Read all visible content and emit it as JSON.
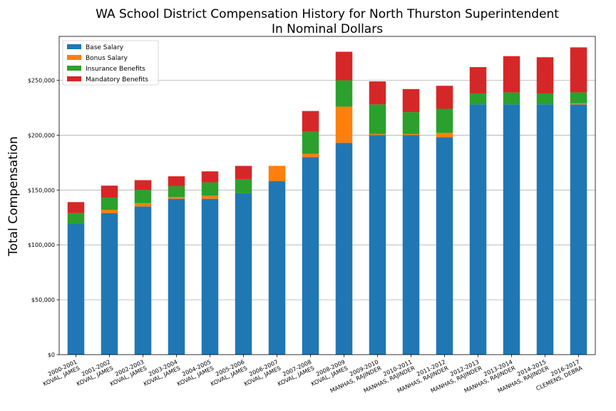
{
  "chart_data": {
    "type": "bar",
    "stacked": true,
    "title": "WA School District Compensation History for North Thurston Superintendent",
    "subtitle": "In Nominal Dollars",
    "xlabel": "",
    "ylabel": "Total Compensation",
    "ylim": [
      0,
      290000
    ],
    "yticks": [
      0,
      50000,
      100000,
      150000,
      200000,
      250000
    ],
    "ytick_labels": [
      "$0",
      "$50,000",
      "$100,000",
      "$150,000",
      "$200,000",
      "$250,000"
    ],
    "grid": "y",
    "legend": "top-left",
    "categories": [
      [
        "2000-2001",
        "KOVAL, JAMES"
      ],
      [
        "2001-2002",
        "KOVAL, JAMES"
      ],
      [
        "2002-2003",
        "KOVAL, JAMES"
      ],
      [
        "2003-2004",
        "KOVAL, JAMES"
      ],
      [
        "2004-2005",
        "KOVAL, JAMES"
      ],
      [
        "2005-2006",
        "KOVAL, JAMES"
      ],
      [
        "2006-2007",
        "KOVAL, JAMES"
      ],
      [
        "2007-2008",
        "KOVAL, JAMES"
      ],
      [
        "2008-2009",
        "KOVAL, JAMES"
      ],
      [
        "2009-2010",
        "MANHAS, RAJINDER"
      ],
      [
        "2010-2011",
        "MANHAS, RAJINDER"
      ],
      [
        "2011-2012",
        "MANHAS, RAJINDER"
      ],
      [
        "2012-2013",
        "MANHAS, RAJINDER"
      ],
      [
        "2013-2014",
        "MANHAS, RAJINDER"
      ],
      [
        "2014-2015",
        "MANHAS, RAJINDER"
      ],
      [
        "2016-2017",
        "CLEMENS, DEBRA"
      ]
    ],
    "series": [
      {
        "name": "Base Salary",
        "color": "#1f77b4",
        "values": [
          119000,
          129000,
          135000,
          142000,
          142000,
          147000,
          158000,
          180000,
          193000,
          200000,
          200000,
          198000,
          228000,
          228000,
          228000,
          228000
        ]
      },
      {
        "name": "Bonus Salary",
        "color": "#ff7f0e",
        "values": [
          0,
          3000,
          3000,
          1500,
          3000,
          0,
          14000,
          3000,
          33000,
          1000,
          1000,
          4000,
          0,
          0,
          0,
          1000
        ]
      },
      {
        "name": "Insurance Benefits",
        "color": "#2ca02c",
        "values": [
          10000,
          11000,
          12000,
          10000,
          12000,
          13000,
          0,
          20000,
          24000,
          27000,
          20000,
          22000,
          10000,
          11000,
          10000,
          10000
        ]
      },
      {
        "name": "Mandatory Benefits",
        "color": "#d62728",
        "values": [
          10000,
          11000,
          9000,
          9000,
          10000,
          12000,
          0,
          19000,
          26000,
          21000,
          21000,
          21000,
          24000,
          33000,
          33000,
          41000
        ]
      }
    ]
  }
}
